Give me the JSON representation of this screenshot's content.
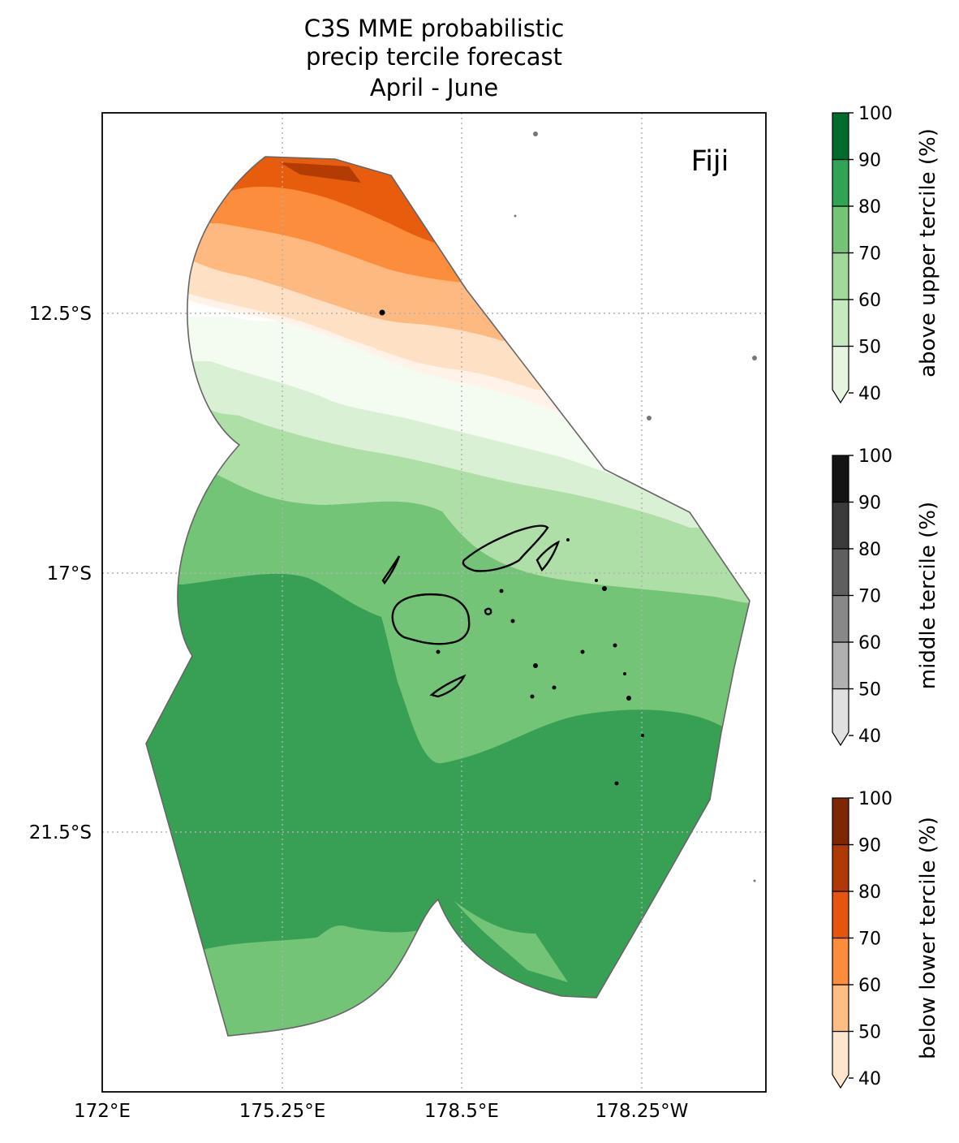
{
  "title": {
    "line1": "C3S MME probabilistic",
    "line2": "precip tercile forecast",
    "line3": "April - June"
  },
  "region_label": "Fiji",
  "x_ticks": [
    "172°E",
    "175.25°E",
    "178.5°E",
    "178.25°W"
  ],
  "y_ticks": [
    "12.5°S",
    "17°S",
    "21.5°S"
  ],
  "colorbars": [
    {
      "label": "above upper tercile (%)",
      "ticks": [
        "40",
        "50",
        "60",
        "70",
        "80",
        "90",
        "100"
      ],
      "colors": [
        "#e5f5e0",
        "#c7e9c0",
        "#a1d99b",
        "#74c476",
        "#31a354",
        "#006d2c"
      ]
    },
    {
      "label": "middle tercile (%)",
      "ticks": [
        "40",
        "50",
        "60",
        "70",
        "80",
        "90",
        "100"
      ],
      "colors": [
        "#e0e0e0",
        "#b0b0b0",
        "#888888",
        "#5f5f5f",
        "#3b3b3b",
        "#141414"
      ]
    },
    {
      "label": "below lower tercile (%)",
      "ticks": [
        "40",
        "50",
        "60",
        "70",
        "80",
        "90",
        "100"
      ],
      "colors": [
        "#fee6ce",
        "#fdbe85",
        "#fd8d3c",
        "#e6550d",
        "#b03a06",
        "#7f2704"
      ]
    }
  ],
  "map_colors": {
    "lower_85": "#b33c04",
    "lower_75": "#e85d0d",
    "lower_65": "#fc8d3d",
    "lower_55": "#fdb97f",
    "lower_45": "#fee0c4",
    "lower_40": "#fff3e9",
    "neutral": "#ffffff",
    "upper_40": "#f4fbf1",
    "upper_45": "#daf0d4",
    "upper_55": "#addfa6",
    "upper_65": "#74c477",
    "upper_75": "#38a055"
  }
}
